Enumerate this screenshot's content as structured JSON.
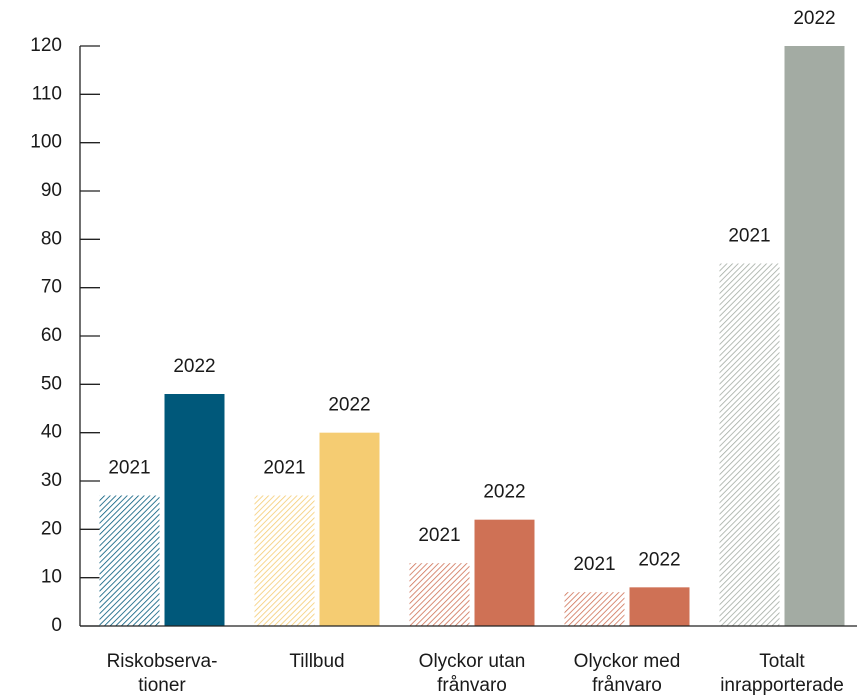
{
  "chart_data": {
    "type": "bar",
    "categories": [
      [
        "Riskobserva-",
        "tioner"
      ],
      [
        "Tillbud"
      ],
      [
        "Olyckor utan",
        "frånvaro"
      ],
      [
        "Olyckor med",
        "frånvaro"
      ],
      [
        "Totalt",
        "inrapporterade"
      ]
    ],
    "colors": [
      "#00587a",
      "#f5cc72",
      "#cf7155",
      "#cf7155",
      "#a3aba3"
    ],
    "series": [
      {
        "name": "2021",
        "pattern": "hatch",
        "values": [
          27,
          27,
          13,
          7,
          75
        ]
      },
      {
        "name": "2022",
        "pattern": "solid",
        "values": [
          48,
          40,
          22,
          8,
          120
        ]
      }
    ],
    "ylim": [
      0,
      120
    ],
    "yticks": [
      0,
      10,
      20,
      30,
      40,
      50,
      60,
      70,
      80,
      90,
      100,
      110,
      120
    ]
  }
}
